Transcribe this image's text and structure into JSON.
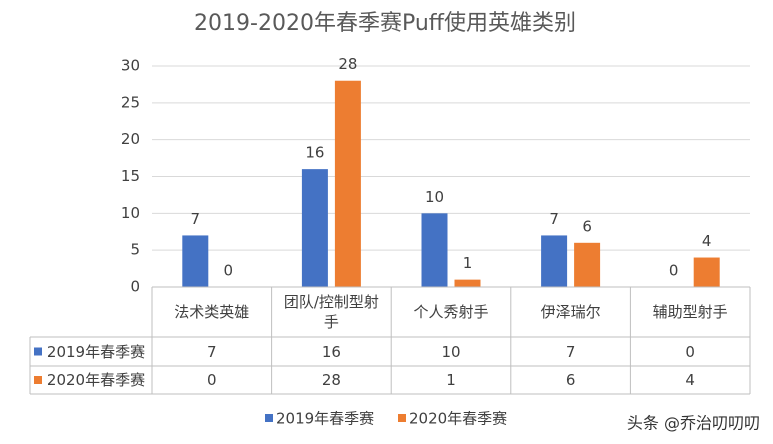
{
  "chart_data": {
    "type": "bar",
    "title": "2019-2020年春季赛Puff使用英雄类别",
    "categories": [
      "法术类英雄",
      "团队/控制型射手",
      "个人秀射手",
      "伊泽瑞尔",
      "辅助型射手"
    ],
    "series": [
      {
        "name": "2019年春季赛",
        "color": "#4472c4",
        "values": [
          7,
          16,
          10,
          7,
          0
        ]
      },
      {
        "name": "2020年春季赛",
        "color": "#ed7d31",
        "values": [
          0,
          28,
          1,
          6,
          4
        ]
      }
    ],
    "ylim": [
      0,
      30
    ],
    "yticks": [
      0,
      5,
      10,
      15,
      20,
      25,
      30
    ],
    "grid": true,
    "data_table": true,
    "legend": "bottom",
    "watermark": "头条 @乔治叨叨叨"
  }
}
